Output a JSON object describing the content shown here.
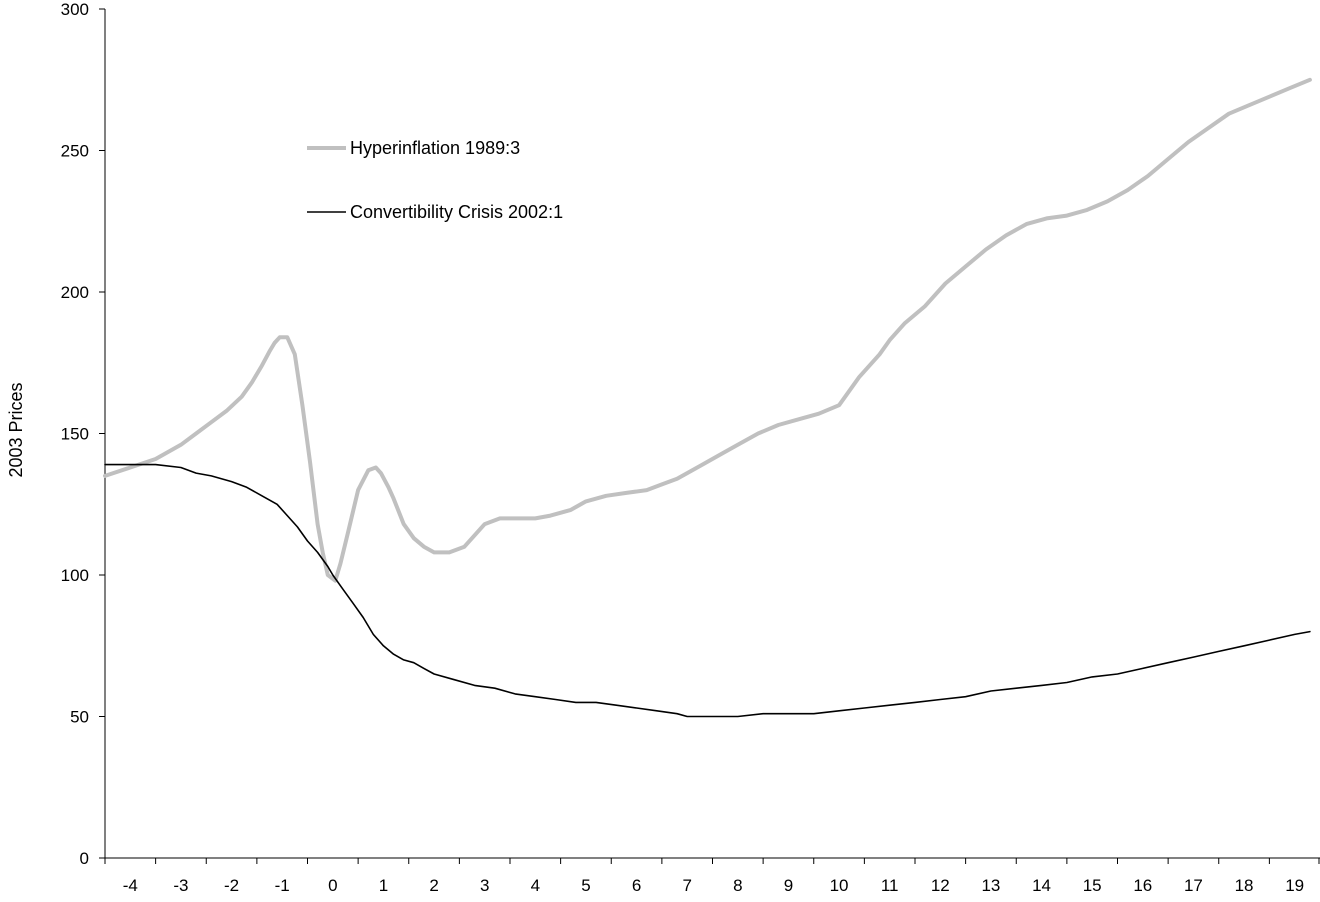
{
  "chart_data": {
    "type": "line",
    "ylabel": "2003 Prices",
    "xlabel": "",
    "ylim": [
      0,
      300
    ],
    "xlim": [
      -4.5,
      19.5
    ],
    "yticks": [
      0,
      50,
      100,
      150,
      200,
      250,
      300
    ],
    "xticks": [
      -4,
      -3,
      -2,
      -1,
      0,
      1,
      2,
      3,
      4,
      5,
      6,
      7,
      8,
      9,
      10,
      11,
      12,
      13,
      14,
      15,
      16,
      17,
      18,
      19
    ],
    "grid": false,
    "legend_position": "top-left",
    "series": [
      {
        "name": "Hyperinflation 1989:3",
        "color": "#c0c0c0",
        "x": [
          -4.5,
          -4.0,
          -3.5,
          -3.0,
          -2.7,
          -2.4,
          -2.1,
          -1.8,
          -1.6,
          -1.4,
          -1.25,
          -1.15,
          -1.05,
          -0.9,
          -0.75,
          -0.6,
          -0.45,
          -0.3,
          -0.2,
          -0.1,
          0.05,
          0.15,
          0.3,
          0.5,
          0.7,
          0.85,
          0.95,
          1.1,
          1.2,
          1.4,
          1.6,
          1.8,
          2.0,
          2.3,
          2.6,
          3.0,
          3.3,
          3.6,
          4.0,
          4.3,
          4.7,
          5.0,
          5.4,
          5.8,
          6.2,
          6.5,
          6.8,
          7.0,
          7.3,
          7.7,
          8.0,
          8.4,
          8.8,
          9.2,
          9.6,
          10.0,
          10.4,
          10.8,
          11.0,
          11.3,
          11.7,
          12.1,
          12.5,
          12.9,
          13.3,
          13.7,
          14.1,
          14.5,
          14.9,
          15.3,
          15.7,
          16.1,
          16.5,
          16.9,
          17.3,
          17.7,
          18.1,
          18.5,
          18.9,
          19.3
        ],
        "values": [
          135,
          138,
          141,
          146,
          150,
          154,
          158,
          163,
          168,
          174,
          179,
          182,
          184,
          184,
          178,
          160,
          140,
          118,
          108,
          100,
          98,
          104,
          115,
          130,
          137,
          138,
          136,
          131,
          127,
          118,
          113,
          110,
          108,
          108,
          110,
          118,
          120,
          120,
          120,
          121,
          123,
          126,
          128,
          129,
          130,
          132,
          134,
          136,
          139,
          143,
          146,
          150,
          153,
          155,
          157,
          160,
          170,
          178,
          183,
          189,
          195,
          203,
          209,
          215,
          220,
          224,
          226,
          227,
          229,
          232,
          236,
          241,
          247,
          253,
          258,
          263,
          266,
          269,
          272,
          275
        ]
      },
      {
        "name": "Convertibility Crisis 2002:1",
        "color": "#000000",
        "x": [
          -4.5,
          -4.0,
          -3.5,
          -3.0,
          -2.7,
          -2.4,
          -2.0,
          -1.7,
          -1.4,
          -1.1,
          -0.9,
          -0.7,
          -0.5,
          -0.3,
          -0.1,
          0.0,
          0.2,
          0.4,
          0.6,
          0.8,
          1.0,
          1.2,
          1.4,
          1.6,
          1.8,
          2.0,
          2.4,
          2.8,
          3.2,
          3.6,
          4.0,
          4.4,
          4.8,
          5.2,
          5.6,
          6.0,
          6.4,
          6.8,
          7.0,
          7.4,
          7.8,
          8.0,
          8.5,
          9.0,
          9.5,
          10.0,
          10.5,
          11.0,
          11.5,
          12.0,
          12.5,
          13.0,
          13.5,
          14.0,
          14.5,
          15.0,
          15.5,
          16.0,
          16.5,
          17.0,
          17.5,
          18.0,
          18.5,
          19.0,
          19.3
        ],
        "values": [
          139,
          139,
          139,
          138,
          136,
          135,
          133,
          131,
          128,
          125,
          121,
          117,
          112,
          108,
          103,
          100,
          95,
          90,
          85,
          79,
          75,
          72,
          70,
          69,
          67,
          65,
          63,
          61,
          60,
          58,
          57,
          56,
          55,
          55,
          54,
          53,
          52,
          51,
          50,
          50,
          50,
          50,
          51,
          51,
          51,
          52,
          53,
          54,
          55,
          56,
          57,
          59,
          60,
          61,
          62,
          64,
          65,
          67,
          69,
          71,
          73,
          75,
          77,
          79,
          80
        ]
      }
    ]
  }
}
